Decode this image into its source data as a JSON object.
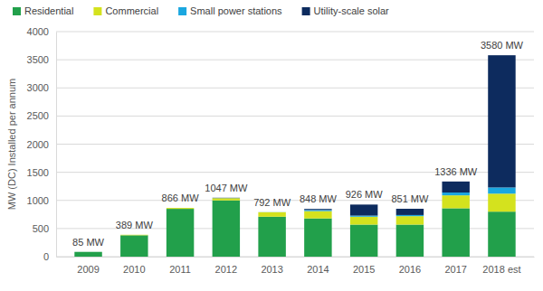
{
  "chart_data": {
    "type": "bar",
    "stacked": true,
    "grid": true,
    "legend": "top",
    "y_label": "MW (DC) Installed per annum",
    "categories": [
      "2009",
      "2010",
      "2011",
      "2012",
      "2013",
      "2014",
      "2015",
      "2016",
      "2017",
      "2018 est"
    ],
    "series": [
      {
        "name": "Residential",
        "color": "#22a04b",
        "values": [
          85,
          380,
          850,
          1000,
          710,
          680,
          570,
          570,
          860,
          800
        ]
      },
      {
        "name": "Commercial",
        "color": "#d4e21e",
        "values": [
          0,
          9,
          16,
          40,
          80,
          130,
          140,
          150,
          230,
          320
        ]
      },
      {
        "name": "Small power stations",
        "color": "#1aa7e0",
        "values": [
          0,
          0,
          0,
          2,
          2,
          20,
          20,
          20,
          50,
          110
        ]
      },
      {
        "name": "Utility-scale solar",
        "color": "#0d2b5e",
        "values": [
          0,
          0,
          0,
          5,
          0,
          18,
          196,
          111,
          196,
          2350
        ]
      }
    ],
    "totals": {
      "values": [
        85,
        389,
        866,
        1047,
        792,
        848,
        926,
        851,
        1336,
        3580
      ],
      "value_labels": [
        "85 MW",
        "389 MW",
        "866 MW",
        "1047 MW",
        "792 MW",
        "848 MW",
        "926 MW",
        "851 MW",
        "1336 MW",
        "3580 MW"
      ]
    },
    "ylim": [
      0,
      4000
    ],
    "yticks": [
      0,
      500,
      1000,
      1500,
      2000,
      2500,
      3000,
      3500,
      4000
    ]
  }
}
